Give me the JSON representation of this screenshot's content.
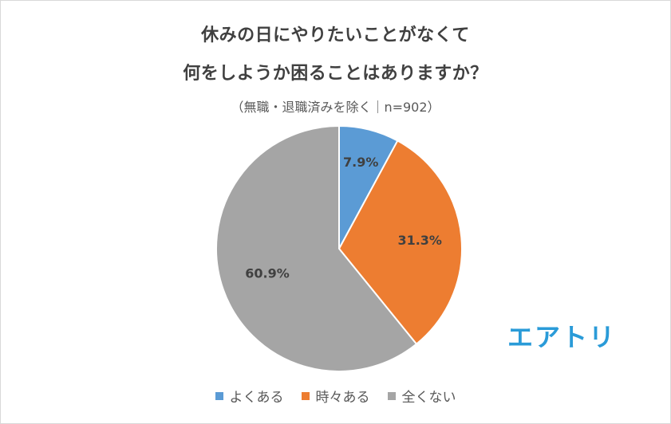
{
  "chart_data": {
    "type": "pie",
    "title": [
      "休みの日にやりたいことがなくて",
      "何をしようか困ることはありますか？"
    ],
    "subtitle": "（無職・退職済みを除く｜n=902）",
    "categories": [
      "よくある",
      "時々ある",
      "全くない"
    ],
    "values": [
      7.9,
      31.3,
      60.9
    ],
    "data_labels": [
      "7.9%",
      "31.3%",
      "60.9%"
    ],
    "colors": [
      "#5b9bd5",
      "#ed7d31",
      "#a5a5a5"
    ],
    "legend_position": "bottom"
  },
  "logo": "エアトリ"
}
